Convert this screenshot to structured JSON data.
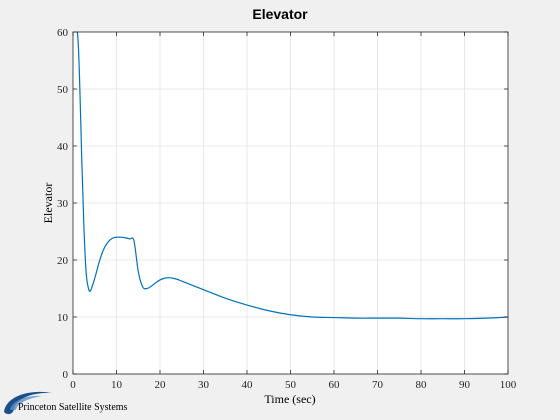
{
  "figure": {
    "background": "#f0f0f0",
    "axes_background": "#ffffff",
    "line_color": "#0072bd",
    "grid_color": "#e3e3e3",
    "axis_color": "#262626"
  },
  "logo": {
    "text": "Princeton Satellite Systems",
    "icon": "psslogo-swoosh-icon",
    "color": "#1a4f8c"
  },
  "chart_data": {
    "type": "line",
    "title": "Elevator",
    "xlabel": "Time (sec)",
    "ylabel": "Elevator",
    "xlim": [
      0,
      100
    ],
    "ylim": [
      0,
      60
    ],
    "xticks": [
      0,
      10,
      20,
      30,
      40,
      50,
      60,
      70,
      80,
      90,
      100
    ],
    "yticks": [
      0,
      10,
      20,
      30,
      40,
      50,
      60
    ],
    "grid": true,
    "series": [
      {
        "x": [
          0,
          1,
          1.5,
          2,
          2.5,
          3,
          3.5,
          4,
          5,
          6,
          7,
          8,
          9,
          10,
          11,
          12,
          13,
          14,
          15,
          16,
          17,
          18,
          19,
          20,
          21,
          22,
          23,
          24,
          25,
          27,
          30,
          35,
          40,
          45,
          50,
          55,
          60,
          65,
          70,
          75,
          80,
          85,
          90,
          95,
          100
        ],
        "y": [
          60,
          60,
          52,
          38,
          26,
          18,
          15.2,
          14.6,
          16.8,
          19.6,
          21.8,
          23.1,
          23.8,
          24,
          24,
          23.9,
          23.7,
          23.4,
          18,
          15.3,
          15,
          15.4,
          16,
          16.5,
          16.8,
          16.9,
          16.8,
          16.6,
          16.3,
          15.7,
          14.8,
          13.3,
          12.1,
          11.1,
          10.4,
          10,
          9.9,
          9.8,
          9.8,
          9.8,
          9.7,
          9.7,
          9.7,
          9.8,
          10
        ]
      }
    ]
  }
}
